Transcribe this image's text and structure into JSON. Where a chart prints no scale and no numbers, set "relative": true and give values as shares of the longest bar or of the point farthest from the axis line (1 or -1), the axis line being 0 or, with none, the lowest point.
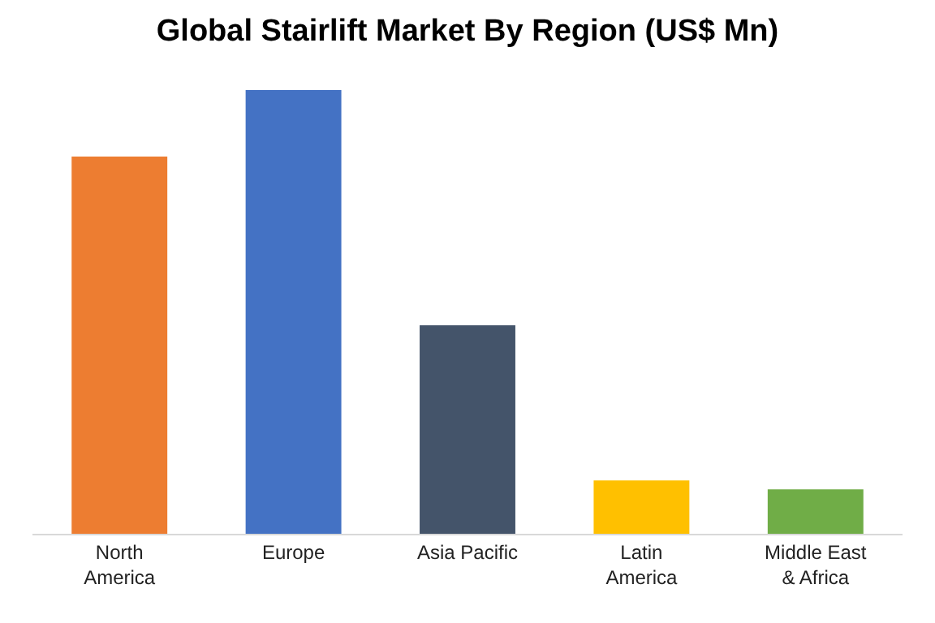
{
  "chart_data": {
    "type": "bar",
    "title": "Global Stairlift Market By Region (US$ Mn)",
    "relative": true,
    "categories": [
      "North America",
      "Europe",
      "Asia Pacific",
      "Latin America",
      "Middle East & Africa"
    ],
    "values": [
      0.85,
      1,
      0.47,
      0.12,
      0.1
    ],
    "colors": [
      "#ed7d31",
      "#4472c4",
      "#44546a",
      "#ffc000",
      "#70ad47"
    ],
    "legend": false
  }
}
